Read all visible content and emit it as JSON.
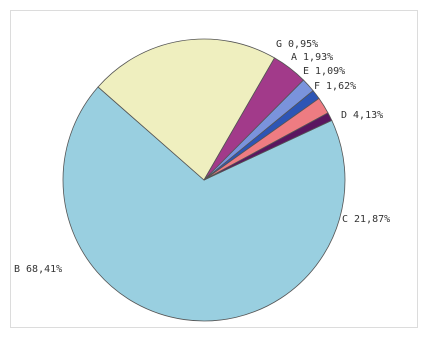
{
  "chart_data": {
    "type": "pie",
    "title": "",
    "slices": [
      {
        "name": "B",
        "value": 68.41,
        "label": "B 68,41%",
        "color": "#99cfe0"
      },
      {
        "name": "C",
        "value": 21.87,
        "label": "C 21,87%",
        "color": "#efefbf"
      },
      {
        "name": "D",
        "value": 4.13,
        "label": "D 4,13%",
        "color": "#a23a8a"
      },
      {
        "name": "F",
        "value": 1.62,
        "label": "F 1,62%",
        "color": "#7a93dc"
      },
      {
        "name": "E",
        "value": 1.09,
        "label": "E 1,09%",
        "color": "#2d55b5"
      },
      {
        "name": "A",
        "value": 1.93,
        "label": "A 1,93%",
        "color": "#ee7c82"
      },
      {
        "name": "G",
        "value": 0.95,
        "label": "G 0,95%",
        "color": "#5a1660"
      }
    ]
  }
}
